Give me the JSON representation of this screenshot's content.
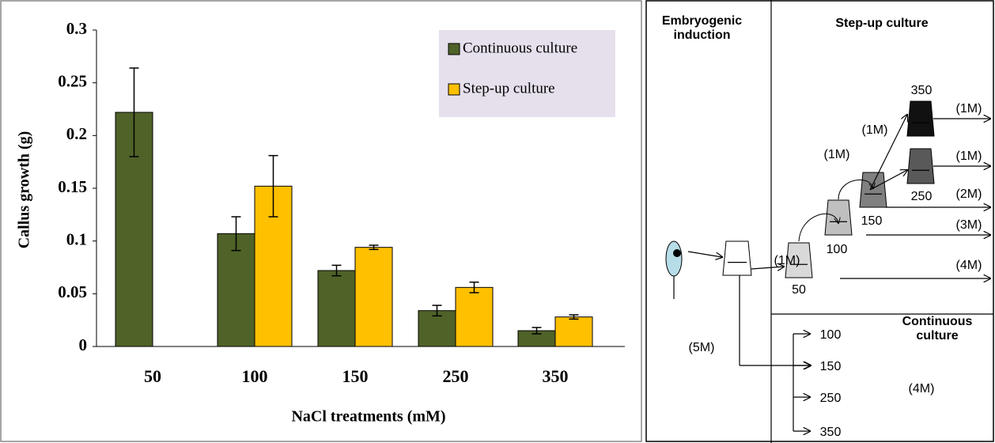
{
  "chart_data": {
    "type": "bar",
    "x_label": "NaCl treatments (mM)",
    "y_label": "Callus growth (g)",
    "categories": [
      "50",
      "100",
      "150",
      "250",
      "350"
    ],
    "series": [
      {
        "name": "Continuous culture",
        "color": "#4f6228",
        "values": [
          0.222,
          0.107,
          0.072,
          0.034,
          0.015
        ],
        "errors": [
          0.042,
          0.016,
          0.005,
          0.005,
          0.003
        ]
      },
      {
        "name": "Step-up culture",
        "color": "#ffc000",
        "values": [
          null,
          0.152,
          0.094,
          0.056,
          0.028
        ],
        "errors": [
          null,
          0.029,
          0.002,
          0.005,
          0.002
        ]
      }
    ],
    "ylim": [
      0,
      0.3
    ],
    "yticks": [
      0,
      0.05,
      0.1,
      0.15,
      0.2,
      0.25,
      0.3
    ],
    "legend": "top-right",
    "grid": false
  },
  "diagram": {
    "embryogenic_title": "Embryogenic induction",
    "step_up_title": "Step-up culture",
    "continuous_title": "Continuous culture",
    "step_up_levels": [
      "50",
      "100",
      "150",
      "250",
      "350"
    ],
    "transfer_durations": [
      "(1M)",
      "(1M)",
      "(1M)"
    ],
    "exit_durations": [
      "(1M)",
      "(1M)",
      "(2M)",
      "(3M)",
      "(4M)"
    ],
    "induction_duration": "(5M)",
    "continuous_levels": [
      "100",
      "150",
      "250",
      "350"
    ],
    "continuous_duration": "(4M)"
  }
}
